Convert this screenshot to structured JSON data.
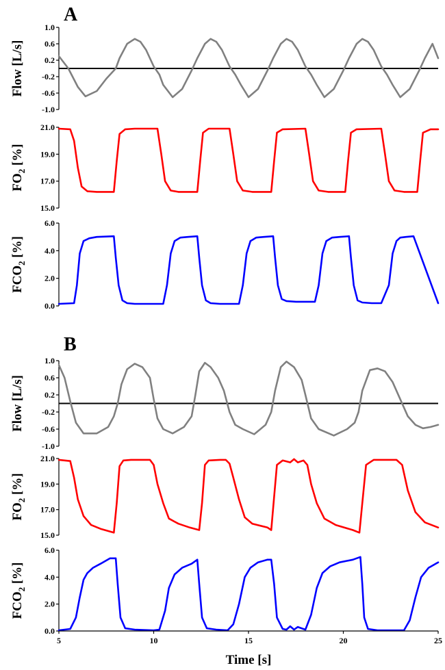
{
  "chart_data": [
    {
      "type": "line",
      "panel": "A",
      "ylabel_main": "Flow [L/s]",
      "ylabel_sub": "",
      "color": "#808080",
      "xlim": [
        5,
        25
      ],
      "ylim": [
        -1.0,
        1.0
      ],
      "yticks": [
        "1.0",
        "0.6",
        "0.2",
        "-0.2",
        "-0.6",
        "-1.0"
      ],
      "yticks_v": [
        1.0,
        0.6,
        0.2,
        -0.2,
        -0.6,
        -1.0
      ],
      "hline": 0,
      "x": [
        5.0,
        5.5,
        6.0,
        6.4,
        7.0,
        7.5,
        8.0,
        8.2,
        8.6,
        9.0,
        9.3,
        9.6,
        10.0,
        10.3,
        10.5,
        11.0,
        11.5,
        12.0,
        12.3,
        12.7,
        13.0,
        13.3,
        13.6,
        14.0,
        14.3,
        14.6,
        15.0,
        15.5,
        16.0,
        16.3,
        16.7,
        17.0,
        17.3,
        17.6,
        18.0,
        18.3,
        18.6,
        19.0,
        19.5,
        20.0,
        20.3,
        20.7,
        21.0,
        21.3,
        21.6,
        22.0,
        22.3,
        22.6,
        23.0,
        23.5,
        24.0,
        24.3,
        24.7,
        25.0
      ],
      "y": [
        0.3,
        0.0,
        -0.45,
        -0.68,
        -0.55,
        -0.25,
        0.0,
        0.25,
        0.6,
        0.72,
        0.65,
        0.45,
        0.05,
        -0.15,
        -0.4,
        -0.7,
        -0.5,
        -0.05,
        0.25,
        0.6,
        0.72,
        0.65,
        0.45,
        0.05,
        -0.15,
        -0.4,
        -0.7,
        -0.5,
        -0.05,
        0.25,
        0.6,
        0.72,
        0.65,
        0.45,
        0.05,
        -0.15,
        -0.4,
        -0.7,
        -0.5,
        -0.05,
        0.25,
        0.6,
        0.72,
        0.65,
        0.45,
        0.05,
        -0.15,
        -0.4,
        -0.7,
        -0.5,
        -0.05,
        0.25,
        0.6,
        0.25
      ]
    },
    {
      "type": "line",
      "panel": "",
      "ylabel_main": "FO",
      "ylabel_sub": "2",
      "ylabel_tail": " [%]",
      "color": "#ff0000",
      "xlim": [
        5,
        25
      ],
      "ylim": [
        15.0,
        21.0
      ],
      "yticks": [
        "21.0",
        "19.0",
        "17.0",
        "15.0"
      ],
      "yticks_v": [
        21.0,
        19.0,
        17.0,
        15.0
      ],
      "x": [
        5.0,
        5.6,
        5.8,
        6.0,
        6.2,
        6.5,
        7.0,
        7.9,
        8.05,
        8.2,
        8.5,
        9.0,
        10.2,
        10.4,
        10.6,
        10.9,
        11.3,
        12.3,
        12.45,
        12.6,
        12.9,
        14.0,
        14.2,
        14.4,
        14.7,
        15.2,
        16.2,
        16.35,
        16.5,
        16.8,
        18.0,
        18.2,
        18.4,
        18.7,
        19.2,
        20.1,
        20.25,
        20.4,
        20.7,
        22.0,
        22.2,
        22.4,
        22.7,
        23.2,
        23.9,
        24.05,
        24.2,
        24.6,
        25.0
      ],
      "y": [
        20.9,
        20.85,
        20.0,
        18.0,
        16.6,
        16.25,
        16.2,
        16.2,
        18.5,
        20.5,
        20.85,
        20.9,
        20.9,
        19.0,
        17.0,
        16.3,
        16.2,
        16.2,
        18.5,
        20.6,
        20.9,
        20.9,
        19.0,
        17.0,
        16.3,
        16.2,
        16.2,
        18.5,
        20.6,
        20.85,
        20.9,
        19.0,
        17.0,
        16.3,
        16.2,
        16.2,
        18.5,
        20.6,
        20.85,
        20.9,
        19.0,
        17.0,
        16.3,
        16.2,
        16.2,
        18.5,
        20.6,
        20.85,
        20.85
      ]
    },
    {
      "type": "line",
      "panel": "",
      "ylabel_main": "FCO",
      "ylabel_sub": "2",
      "ylabel_tail": " [%]",
      "color": "#0000ff",
      "xlim": [
        5,
        25
      ],
      "ylim": [
        0.0,
        6.0
      ],
      "yticks": [
        "6.0",
        "4.0",
        "2.0",
        "0.0"
      ],
      "yticks_v": [
        6.0,
        4.0,
        2.0,
        0.0
      ],
      "x": [
        5.0,
        5.8,
        5.95,
        6.1,
        6.3,
        6.6,
        7.0,
        7.9,
        8.0,
        8.15,
        8.35,
        8.6,
        9.0,
        10.5,
        10.7,
        10.9,
        11.1,
        11.4,
        11.8,
        12.3,
        12.4,
        12.55,
        12.75,
        13.0,
        13.5,
        14.5,
        14.7,
        14.9,
        15.1,
        15.4,
        15.8,
        16.3,
        16.4,
        16.55,
        16.75,
        17.0,
        17.5,
        18.5,
        18.7,
        18.9,
        19.1,
        19.4,
        19.8,
        20.3,
        20.4,
        20.55,
        20.75,
        21.0,
        21.5,
        22.0,
        22.4,
        22.6,
        22.8,
        23.0,
        23.3,
        23.7,
        25.0
      ],
      "y": [
        0.15,
        0.2,
        1.5,
        3.8,
        4.7,
        4.9,
        5.0,
        5.05,
        3.5,
        1.5,
        0.4,
        0.2,
        0.15,
        0.15,
        1.5,
        3.8,
        4.7,
        4.95,
        5.0,
        5.05,
        3.5,
        1.5,
        0.4,
        0.2,
        0.15,
        0.15,
        1.5,
        3.8,
        4.7,
        4.95,
        5.0,
        5.05,
        3.5,
        1.5,
        0.5,
        0.35,
        0.3,
        0.3,
        1.5,
        3.8,
        4.7,
        4.95,
        5.0,
        5.05,
        3.5,
        1.5,
        0.4,
        0.25,
        0.2,
        0.2,
        1.5,
        3.8,
        4.7,
        4.95,
        5.0,
        5.05,
        0.2
      ]
    },
    {
      "type": "line",
      "panel": "B",
      "ylabel_main": "Flow [L/s]",
      "ylabel_sub": "",
      "color": "#808080",
      "xlim": [
        5,
        25
      ],
      "ylim": [
        -1.0,
        1.0
      ],
      "yticks": [
        "1.0",
        "0.6",
        "0.2",
        "-0.2",
        "-0.6",
        "-1.0"
      ],
      "yticks_v": [
        1.0,
        0.6,
        0.2,
        -0.2,
        -0.6,
        -1.0
      ],
      "hline": 0,
      "x": [
        5.0,
        5.3,
        5.6,
        5.9,
        6.3,
        7.0,
        7.6,
        7.9,
        8.1,
        8.3,
        8.6,
        9.0,
        9.4,
        9.8,
        10.0,
        10.2,
        10.5,
        11.0,
        11.6,
        12.0,
        12.2,
        12.4,
        12.7,
        13.0,
        13.4,
        13.7,
        14.0,
        14.3,
        14.7,
        15.3,
        15.9,
        16.2,
        16.4,
        16.7,
        17.0,
        17.4,
        17.8,
        18.0,
        18.3,
        18.7,
        19.5,
        20.2,
        20.6,
        20.8,
        21.0,
        21.4,
        21.8,
        22.2,
        22.6,
        23.0,
        23.4,
        23.8,
        24.2,
        24.6,
        25.0
      ],
      "y": [
        0.9,
        0.6,
        0.05,
        -0.45,
        -0.7,
        -0.7,
        -0.55,
        -0.3,
        0.0,
        0.45,
        0.8,
        0.93,
        0.85,
        0.6,
        0.1,
        -0.35,
        -0.6,
        -0.7,
        -0.55,
        -0.3,
        0.2,
        0.75,
        0.95,
        0.85,
        0.6,
        0.3,
        -0.2,
        -0.5,
        -0.6,
        -0.72,
        -0.5,
        -0.2,
        0.3,
        0.85,
        0.98,
        0.85,
        0.55,
        0.2,
        -0.35,
        -0.6,
        -0.75,
        -0.6,
        -0.45,
        -0.2,
        0.3,
        0.78,
        0.82,
        0.75,
        0.5,
        0.1,
        -0.3,
        -0.5,
        -0.58,
        -0.55,
        -0.5
      ]
    },
    {
      "type": "line",
      "panel": "",
      "ylabel_main": "FO",
      "ylabel_sub": "2",
      "ylabel_tail": " [%]",
      "color": "#ff0000",
      "xlim": [
        5,
        25
      ],
      "ylim": [
        15.0,
        21.0
      ],
      "yticks": [
        "21.0",
        "19.0",
        "17.0",
        "15.0"
      ],
      "yticks_v": [
        21.0,
        19.0,
        17.0,
        15.0
      ],
      "x": [
        5.0,
        5.3,
        5.6,
        5.8,
        6.0,
        6.3,
        6.7,
        7.2,
        7.9,
        8.05,
        8.2,
        8.4,
        8.8,
        9.8,
        10.0,
        10.2,
        10.5,
        10.8,
        11.3,
        11.9,
        12.4,
        12.55,
        12.7,
        12.9,
        13.5,
        13.8,
        14.0,
        14.2,
        14.5,
        14.8,
        15.2,
        16.0,
        16.2,
        16.35,
        16.5,
        16.8,
        17.2,
        17.4,
        17.6,
        17.9,
        18.1,
        18.3,
        18.6,
        19.0,
        19.6,
        20.5,
        20.85,
        21.0,
        21.2,
        21.6,
        22.8,
        23.1,
        23.4,
        23.8,
        24.3,
        25.0
      ],
      "y": [
        20.9,
        20.85,
        20.8,
        19.5,
        17.8,
        16.5,
        15.8,
        15.5,
        15.2,
        17.5,
        20.4,
        20.85,
        20.9,
        20.9,
        20.5,
        19.0,
        17.5,
        16.3,
        15.9,
        15.6,
        15.4,
        17.5,
        20.5,
        20.85,
        20.9,
        20.9,
        20.6,
        19.5,
        17.8,
        16.4,
        15.9,
        15.6,
        15.4,
        18.0,
        20.5,
        20.85,
        20.7,
        20.95,
        20.7,
        20.85,
        20.5,
        19.0,
        17.5,
        16.3,
        15.8,
        15.4,
        15.2,
        17.5,
        20.5,
        20.9,
        20.9,
        20.5,
        18.5,
        16.8,
        16.0,
        15.6
      ]
    },
    {
      "type": "line",
      "panel": "",
      "ylabel_main": "FCO",
      "ylabel_sub": "2",
      "ylabel_tail": " [%]",
      "color": "#0000ff",
      "xlim": [
        5,
        25
      ],
      "ylim": [
        0.0,
        6.0
      ],
      "yticks": [
        "6.0",
        "4.0",
        "2.0",
        "0.0"
      ],
      "yticks_v": [
        6.0,
        4.0,
        2.0,
        0.0
      ],
      "xticks": [
        "5",
        "10",
        "15",
        "20",
        "25"
      ],
      "xticks_v": [
        5,
        10,
        15,
        20,
        25
      ],
      "xlabel": "Time [s]",
      "x": [
        5.0,
        5.6,
        5.9,
        6.1,
        6.3,
        6.5,
        6.8,
        7.2,
        7.7,
        8.0,
        8.1,
        8.25,
        8.5,
        9.0,
        10.0,
        10.3,
        10.6,
        10.8,
        11.1,
        11.5,
        12.0,
        12.3,
        12.4,
        12.55,
        12.8,
        13.3,
        13.9,
        14.2,
        14.5,
        14.8,
        15.1,
        15.5,
        16.0,
        16.2,
        16.35,
        16.5,
        16.8,
        17.0,
        17.2,
        17.4,
        17.6,
        17.8,
        18.0,
        18.3,
        18.6,
        18.9,
        19.3,
        19.8,
        20.5,
        20.9,
        21.0,
        21.1,
        21.3,
        21.8,
        23.2,
        23.5,
        23.8,
        24.1,
        24.5,
        25.0
      ],
      "y": [
        0.05,
        0.15,
        1.0,
        2.5,
        3.8,
        4.3,
        4.7,
        5.0,
        5.4,
        5.4,
        3.5,
        1.0,
        0.2,
        0.1,
        0.05,
        0.1,
        1.5,
        3.2,
        4.2,
        4.7,
        5.0,
        5.3,
        3.5,
        1.0,
        0.2,
        0.1,
        0.05,
        0.5,
        2.0,
        4.0,
        4.7,
        5.1,
        5.3,
        5.3,
        3.5,
        1.0,
        0.15,
        0.1,
        0.35,
        0.1,
        0.3,
        0.2,
        0.1,
        1.2,
        3.2,
        4.3,
        4.8,
        5.1,
        5.3,
        5.5,
        3.5,
        1.0,
        0.15,
        0.05,
        0.05,
        0.8,
        2.5,
        4.0,
        4.7,
        5.1
      ]
    }
  ],
  "panel_labels": {
    "a": "A",
    "b": "B"
  }
}
